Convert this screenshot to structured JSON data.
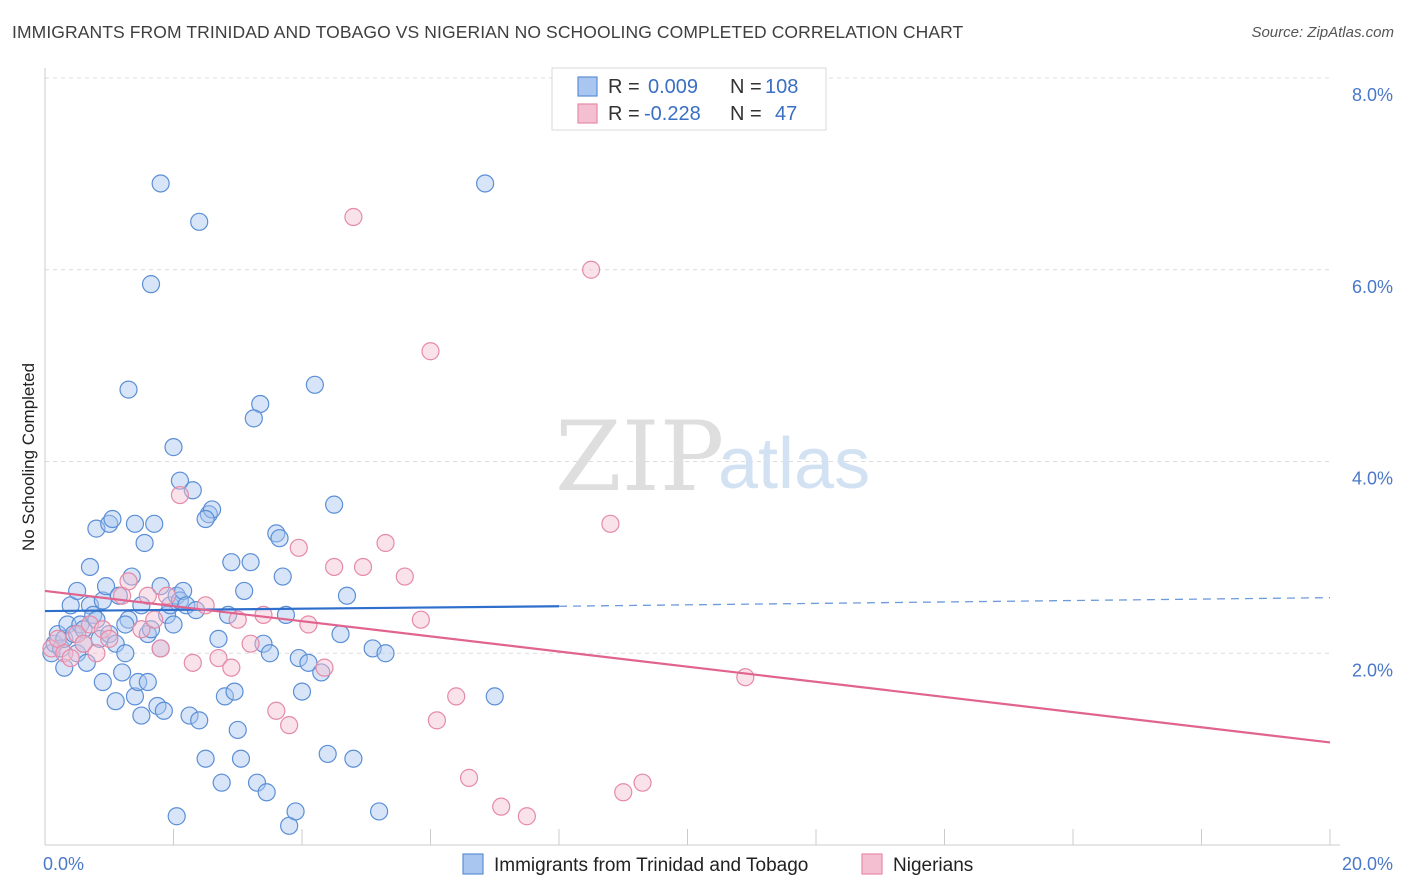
{
  "title": "IMMIGRANTS FROM TRINIDAD AND TOBAGO VS NIGERIAN NO SCHOOLING COMPLETED CORRELATION CHART",
  "source": "Source: ZipAtlas.com",
  "watermark": {
    "zip": "ZIP",
    "atlas": "atlas"
  },
  "colors": {
    "blue": "#5b8fd6",
    "blue_fill": "#a8c6ef",
    "blue_line": "#2f6fcc",
    "pink": "#e58aa8",
    "pink_fill": "#f4bfd0",
    "pink_line": "#e0648f",
    "tick": "#4a78c8",
    "grid": "#dcdcdc"
  },
  "legend": {
    "rows": [
      {
        "r_label": "R =",
        "r_value": "0.009",
        "n_label": "N =",
        "n_value": "108"
      },
      {
        "r_label": "R =",
        "r_value": "-0.228",
        "n_label": "N =",
        "n_value": "47"
      }
    ]
  },
  "chart_data": {
    "type": "scatter",
    "xlabel": "",
    "ylabel": "No Schooling Completed",
    "xlim": [
      0,
      20
    ],
    "ylim": [
      0,
      8.0
    ],
    "x_tick_labels": [
      {
        "value": 0,
        "label": "0.0%"
      },
      {
        "value": 20,
        "label": "20.0%"
      }
    ],
    "y_tick_labels": [
      {
        "value": 2,
        "label": "2.0%"
      },
      {
        "value": 4,
        "label": "4.0%"
      },
      {
        "value": 6,
        "label": "6.0%"
      },
      {
        "value": 8,
        "label": "8.0%"
      }
    ],
    "grid": true,
    "legend_position": "top-center",
    "series": [
      {
        "name": "Immigrants from Trinidad and Tobago",
        "color": "#5b8fd6",
        "R": 0.009,
        "N": 108,
        "trend": {
          "x0": 0,
          "y0": 2.44,
          "x1": 8.0,
          "y1": 2.49,
          "dashed_to_x": 20,
          "dashed_to_y": 2.58
        },
        "points": [
          [
            0.1,
            2.0
          ],
          [
            0.15,
            2.1
          ],
          [
            0.2,
            2.2
          ],
          [
            0.25,
            2.05
          ],
          [
            0.3,
            1.85
          ],
          [
            0.3,
            2.15
          ],
          [
            0.35,
            2.3
          ],
          [
            0.4,
            2.5
          ],
          [
            0.45,
            2.2
          ],
          [
            0.5,
            2.0
          ],
          [
            0.5,
            2.65
          ],
          [
            0.55,
            2.3
          ],
          [
            0.6,
            2.25
          ],
          [
            0.6,
            2.1
          ],
          [
            0.65,
            1.9
          ],
          [
            0.7,
            2.5
          ],
          [
            0.7,
            2.9
          ],
          [
            0.75,
            2.4
          ],
          [
            0.8,
            3.3
          ],
          [
            0.85,
            2.15
          ],
          [
            0.9,
            1.7
          ],
          [
            0.9,
            2.55
          ],
          [
            0.95,
            2.7
          ],
          [
            1.0,
            2.2
          ],
          [
            1.0,
            3.35
          ],
          [
            1.05,
            3.4
          ],
          [
            1.1,
            2.1
          ],
          [
            1.1,
            1.5
          ],
          [
            1.15,
            2.6
          ],
          [
            1.2,
            1.8
          ],
          [
            1.25,
            2.0
          ],
          [
            1.3,
            2.35
          ],
          [
            1.35,
            2.8
          ],
          [
            1.4,
            1.55
          ],
          [
            1.4,
            3.35
          ],
          [
            1.45,
            1.7
          ],
          [
            1.5,
            1.35
          ],
          [
            1.5,
            2.5
          ],
          [
            1.55,
            3.15
          ],
          [
            1.6,
            2.2
          ],
          [
            1.6,
            1.7
          ],
          [
            1.65,
            2.25
          ],
          [
            1.7,
            3.35
          ],
          [
            1.75,
            1.45
          ],
          [
            1.8,
            2.05
          ],
          [
            1.8,
            2.7
          ],
          [
            1.85,
            1.4
          ],
          [
            1.9,
            2.4
          ],
          [
            1.95,
            2.5
          ],
          [
            2.0,
            2.3
          ],
          [
            2.05,
            2.6
          ],
          [
            2.1,
            2.55
          ],
          [
            2.15,
            2.65
          ],
          [
            2.2,
            2.5
          ],
          [
            2.25,
            1.35
          ],
          [
            2.3,
            3.7
          ],
          [
            2.35,
            2.45
          ],
          [
            2.4,
            1.3
          ],
          [
            2.5,
            0.9
          ],
          [
            2.55,
            3.45
          ],
          [
            2.6,
            3.5
          ],
          [
            2.7,
            2.15
          ],
          [
            2.75,
            0.65
          ],
          [
            2.8,
            1.55
          ],
          [
            2.85,
            2.4
          ],
          [
            2.9,
            2.95
          ],
          [
            2.95,
            1.6
          ],
          [
            3.0,
            1.2
          ],
          [
            3.05,
            0.9
          ],
          [
            3.1,
            2.65
          ],
          [
            3.2,
            2.95
          ],
          [
            3.3,
            0.65
          ],
          [
            3.4,
            2.1
          ],
          [
            3.45,
            0.55
          ],
          [
            3.5,
            2.0
          ],
          [
            3.6,
            3.25
          ],
          [
            3.65,
            3.2
          ],
          [
            3.7,
            2.8
          ],
          [
            3.75,
            2.4
          ],
          [
            3.8,
            0.2
          ],
          [
            3.9,
            0.35
          ],
          [
            3.95,
            1.95
          ],
          [
            4.0,
            1.6
          ],
          [
            4.2,
            4.8
          ],
          [
            4.3,
            1.8
          ],
          [
            4.4,
            0.95
          ],
          [
            4.5,
            3.55
          ],
          [
            4.6,
            2.2
          ],
          [
            4.7,
            2.6
          ],
          [
            4.8,
            0.9
          ],
          [
            5.1,
            2.05
          ],
          [
            5.2,
            0.35
          ],
          [
            5.3,
            2.0
          ],
          [
            2.4,
            6.5
          ],
          [
            1.8,
            6.9
          ],
          [
            6.85,
            6.9
          ],
          [
            1.65,
            5.85
          ],
          [
            3.35,
            4.6
          ],
          [
            3.25,
            4.45
          ],
          [
            1.3,
            4.75
          ],
          [
            2.0,
            4.15
          ],
          [
            2.1,
            3.8
          ],
          [
            7.0,
            1.55
          ],
          [
            2.05,
            0.3
          ],
          [
            2.5,
            3.4
          ],
          [
            4.1,
            1.9
          ],
          [
            0.8,
            2.35
          ],
          [
            1.25,
            2.3
          ]
        ]
      },
      {
        "name": "Nigerians",
        "color": "#e58aa8",
        "R": -0.228,
        "N": 47,
        "trend": {
          "x0": 0,
          "y0": 2.65,
          "x1": 20,
          "y1": 1.07
        },
        "points": [
          [
            0.1,
            2.05
          ],
          [
            0.2,
            2.15
          ],
          [
            0.3,
            2.0
          ],
          [
            0.4,
            1.95
          ],
          [
            0.5,
            2.2
          ],
          [
            0.6,
            2.1
          ],
          [
            0.7,
            2.3
          ],
          [
            0.8,
            2.0
          ],
          [
            0.9,
            2.25
          ],
          [
            1.0,
            2.15
          ],
          [
            1.2,
            2.6
          ],
          [
            1.3,
            2.75
          ],
          [
            1.5,
            2.25
          ],
          [
            1.6,
            2.6
          ],
          [
            1.7,
            2.35
          ],
          [
            1.8,
            2.05
          ],
          [
            1.9,
            2.6
          ],
          [
            2.1,
            3.65
          ],
          [
            2.3,
            1.9
          ],
          [
            2.5,
            2.5
          ],
          [
            2.7,
            1.95
          ],
          [
            2.9,
            1.85
          ],
          [
            3.0,
            2.35
          ],
          [
            3.2,
            2.1
          ],
          [
            3.4,
            2.4
          ],
          [
            3.6,
            1.4
          ],
          [
            3.8,
            1.25
          ],
          [
            3.95,
            3.1
          ],
          [
            4.1,
            2.3
          ],
          [
            4.35,
            1.85
          ],
          [
            4.5,
            2.9
          ],
          [
            4.8,
            6.55
          ],
          [
            4.95,
            2.9
          ],
          [
            5.3,
            3.15
          ],
          [
            5.6,
            2.8
          ],
          [
            5.85,
            2.35
          ],
          [
            6.0,
            5.15
          ],
          [
            6.1,
            1.3
          ],
          [
            6.4,
            1.55
          ],
          [
            6.6,
            0.7
          ],
          [
            7.1,
            0.4
          ],
          [
            7.5,
            0.3
          ],
          [
            8.8,
            3.35
          ],
          [
            8.5,
            6.0
          ],
          [
            9.0,
            0.55
          ],
          [
            9.3,
            0.65
          ],
          [
            10.9,
            1.75
          ]
        ]
      }
    ]
  }
}
